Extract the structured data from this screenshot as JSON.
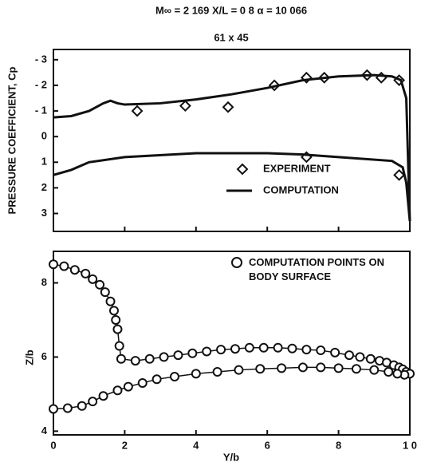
{
  "chart_data": [
    {
      "type": "line",
      "title": "M∞ = 2 169   X/L = 0 8   α = 10 066",
      "subtitle": "61 x 45",
      "ylabel": "PRESSURE COEFFICIENT, Cp",
      "xlim": [
        0,
        1.0
      ],
      "xticks": [
        0,
        0.2,
        0.4,
        0.6,
        0.8,
        1.0
      ],
      "ylim": [
        3.7,
        -3.4
      ],
      "yticks": [
        {
          "value": -3,
          "label": "- 3"
        },
        {
          "value": -2,
          "label": "- 2"
        },
        {
          "value": -1,
          "label": "- 1"
        },
        0,
        1,
        2,
        3
      ],
      "series": [
        {
          "name": "EXPERIMENT",
          "marker": "diamond",
          "color": "#111111",
          "x": [
            0.235,
            0.37,
            0.49,
            0.62,
            0.71,
            0.76,
            0.88,
            0.92,
            0.97,
            0.71,
            0.97
          ],
          "values": [
            -1.0,
            -1.2,
            -1.15,
            -2.0,
            -2.3,
            -2.3,
            -2.4,
            -2.3,
            -2.2,
            0.8,
            1.5
          ]
        },
        {
          "name": "COMPUTATION",
          "marker": "line",
          "color": "#111111",
          "x": [
            0,
            0.05,
            0.1,
            0.14,
            0.16,
            0.18,
            0.2,
            0.3,
            0.4,
            0.5,
            0.6,
            0.7,
            0.8,
            0.9,
            0.95,
            0.975,
            0.99,
            1.0,
            0.99,
            0.98,
            0.95,
            0.8,
            0.7,
            0.6,
            0.4,
            0.2,
            0.1,
            0.05,
            0
          ],
          "values": [
            -0.75,
            -0.8,
            -1.0,
            -1.3,
            -1.4,
            -1.3,
            -1.25,
            -1.3,
            -1.45,
            -1.65,
            -1.9,
            -2.2,
            -2.35,
            -2.4,
            -2.35,
            -2.2,
            -1.5,
            3.3,
            1.8,
            1.2,
            0.95,
            0.8,
            0.7,
            0.65,
            0.65,
            0.8,
            1.0,
            1.3,
            1.5
          ]
        }
      ]
    },
    {
      "type": "scatter",
      "xlabel": "Y/b",
      "ylabel": "Z/b",
      "xlim": [
        0,
        1.0
      ],
      "xticks": [
        0,
        {
          "value": 0.2,
          "label": "2"
        },
        {
          "value": 0.4,
          "label": "4"
        },
        {
          "value": 0.6,
          "label": "6"
        },
        {
          "value": 0.8,
          "label": "8"
        },
        {
          "value": 1.0,
          "label": "1 0"
        }
      ],
      "ylim": [
        0.39,
        0.885
      ],
      "yticks": [
        {
          "value": 0.4,
          "label": "4"
        },
        {
          "value": 0.6,
          "label": "6"
        },
        {
          "value": 0.8,
          "label": "8"
        }
      ],
      "series": [
        {
          "name": "COMPUTATION POINTS ON BODY SURFACE",
          "marker": "circle",
          "color": "#111111",
          "x": [
            0,
            0.03,
            0.06,
            0.09,
            0.11,
            0.13,
            0.145,
            0.16,
            0.17,
            0.175,
            0.18,
            0.185,
            0.19,
            0.23,
            0.27,
            0.31,
            0.35,
            0.39,
            0.43,
            0.47,
            0.51,
            0.55,
            0.59,
            0.63,
            0.67,
            0.71,
            0.75,
            0.79,
            0.83,
            0.86,
            0.89,
            0.915,
            0.935,
            0.955,
            0.97,
            0.98,
            0.99,
            1.0,
            0.985,
            0.965,
            0.94,
            0.9,
            0.85,
            0.8,
            0.75,
            0.7,
            0.64,
            0.58,
            0.52,
            0.46,
            0.4,
            0.34,
            0.29,
            0.25,
            0.21,
            0.18,
            0.14,
            0.11,
            0.08,
            0.04,
            0
          ],
          "values": [
            0.85,
            0.845,
            0.835,
            0.825,
            0.81,
            0.795,
            0.775,
            0.75,
            0.725,
            0.7,
            0.675,
            0.63,
            0.595,
            0.59,
            0.595,
            0.6,
            0.605,
            0.61,
            0.615,
            0.62,
            0.622,
            0.625,
            0.625,
            0.625,
            0.623,
            0.62,
            0.618,
            0.612,
            0.605,
            0.6,
            0.595,
            0.59,
            0.585,
            0.578,
            0.572,
            0.567,
            0.56,
            0.555,
            0.552,
            0.555,
            0.56,
            0.565,
            0.568,
            0.57,
            0.572,
            0.572,
            0.57,
            0.568,
            0.565,
            0.56,
            0.555,
            0.547,
            0.54,
            0.53,
            0.52,
            0.51,
            0.495,
            0.48,
            0.468,
            0.462,
            0.46
          ]
        }
      ]
    }
  ]
}
